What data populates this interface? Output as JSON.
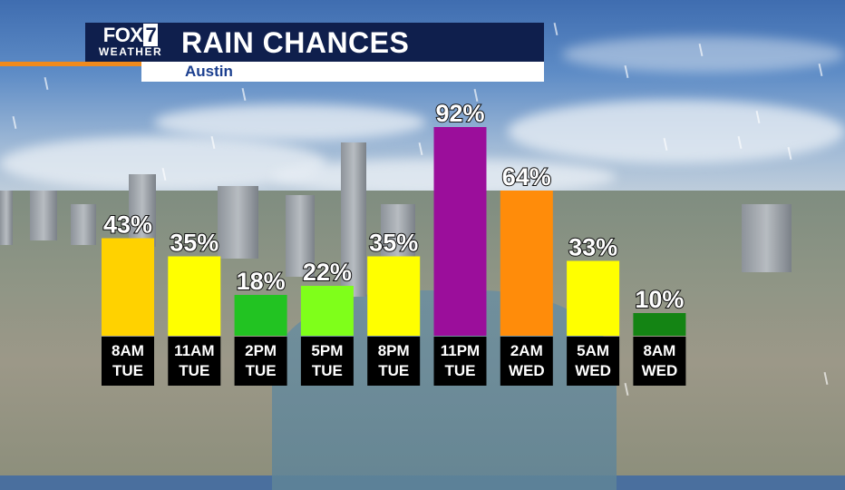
{
  "header": {
    "logo_main": "FOX",
    "logo_num": "7",
    "logo_sub": "WEATHER",
    "title": "RAIN CHANCES",
    "subtitle": "Austin"
  },
  "colors": {
    "header_navy": "#0f1f4d",
    "accent_orange": "#f08a1c"
  },
  "chart_data": {
    "type": "bar",
    "title": "RAIN CHANCES",
    "subtitle": "Austin",
    "categories": [
      [
        "8AM",
        "TUE"
      ],
      [
        "11AM",
        "TUE"
      ],
      [
        "2PM",
        "TUE"
      ],
      [
        "5PM",
        "TUE"
      ],
      [
        "8PM",
        "TUE"
      ],
      [
        "11PM",
        "TUE"
      ],
      [
        "2AM",
        "WED"
      ],
      [
        "5AM",
        "WED"
      ],
      [
        "8AM",
        "WED"
      ]
    ],
    "values": [
      43,
      35,
      18,
      22,
      35,
      92,
      64,
      33,
      10
    ],
    "value_suffix": "%",
    "bar_colors": [
      "#ffd200",
      "#ffff00",
      "#22c322",
      "#7fff1a",
      "#ffff00",
      "#9b0e9b",
      "#ff8c0a",
      "#ffff00",
      "#148414"
    ],
    "ylim": [
      0,
      100
    ],
    "grid": false
  }
}
